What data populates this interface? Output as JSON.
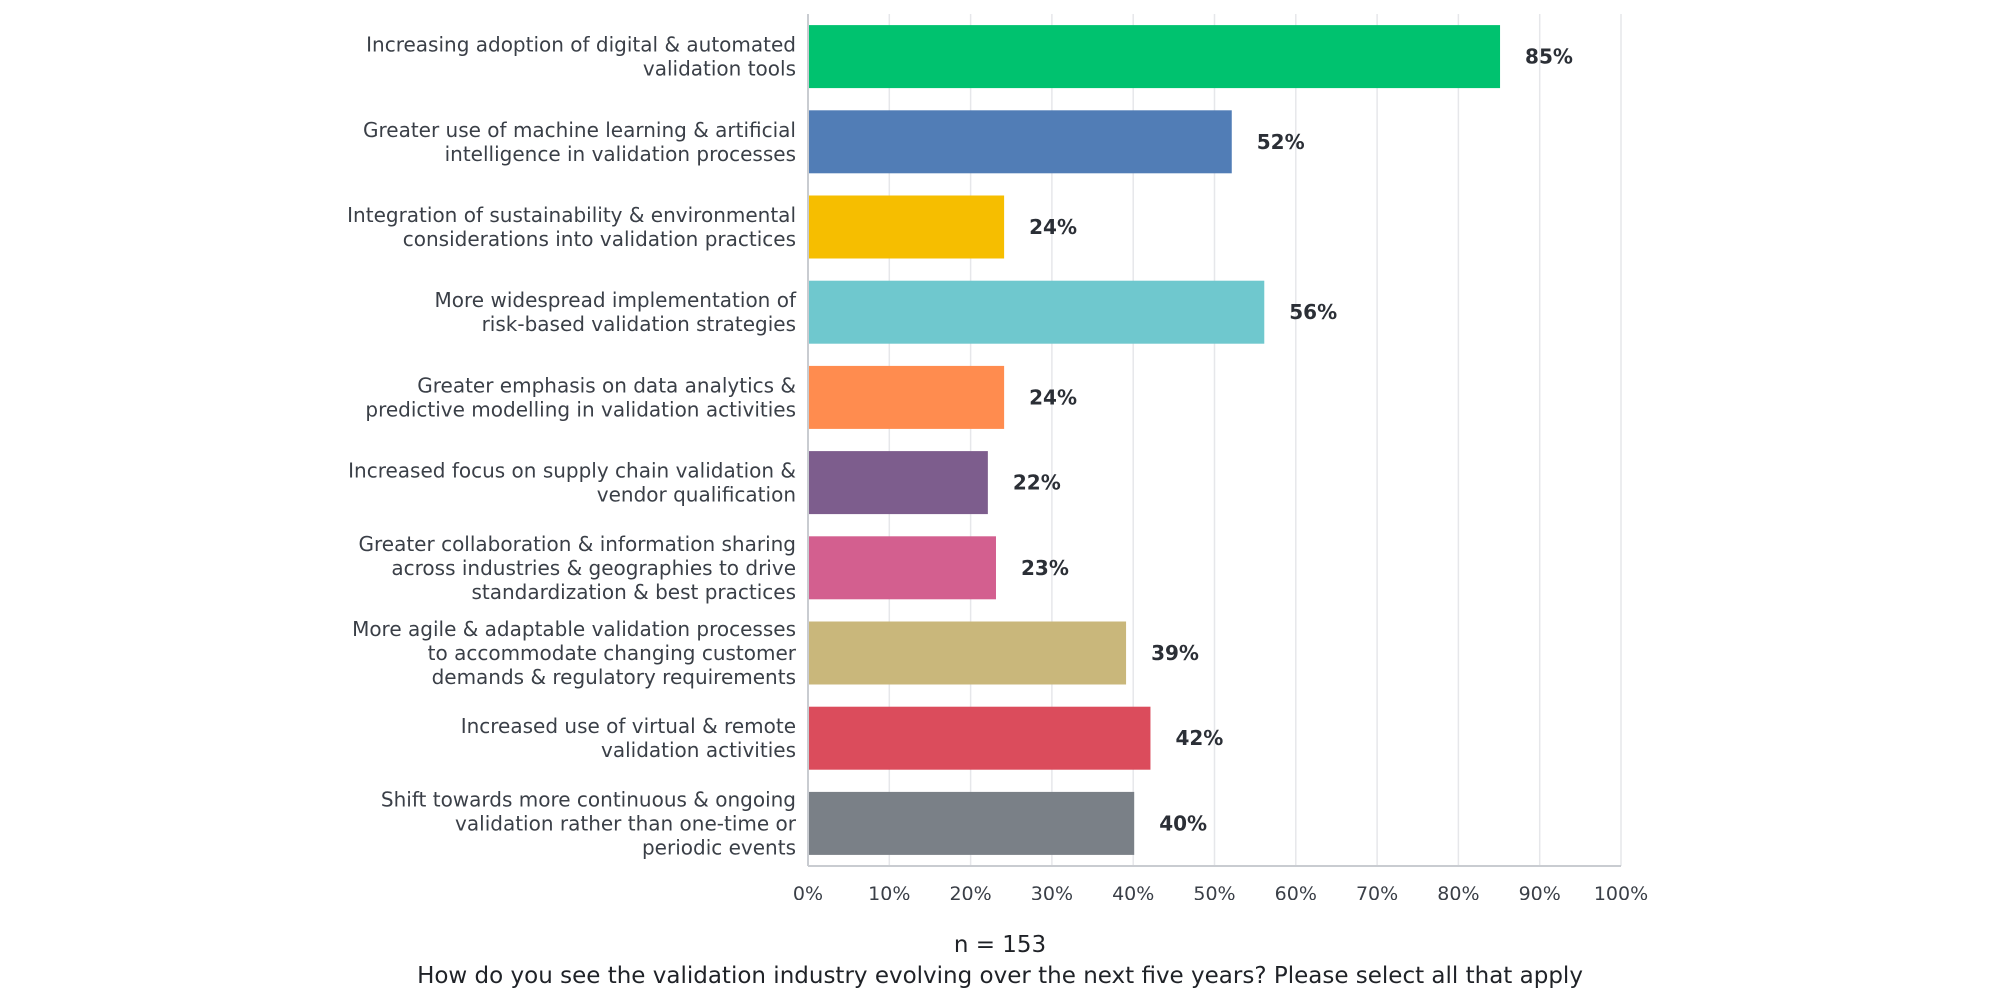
{
  "footer": {
    "n_label": "n = 153",
    "question": "How do you see the validation industry evolving over the next five years? Please select all that apply"
  },
  "chart_data": {
    "type": "bar",
    "orientation": "horizontal",
    "grid": true,
    "xlim": [
      0,
      100
    ],
    "x_ticks": [
      "0%",
      "10%",
      "20%",
      "30%",
      "40%",
      "50%",
      "60%",
      "70%",
      "80%",
      "90%",
      "100%"
    ],
    "categories": [
      [
        "Increasing adoption of digital & automated",
        "validation tools"
      ],
      [
        "Greater use of machine learning & artificial",
        "intelligence in validation processes"
      ],
      [
        "Integration of sustainability & environmental",
        "considerations into validation practices"
      ],
      [
        "More widespread implementation of",
        "risk-based validation strategies"
      ],
      [
        "Greater emphasis on data analytics &",
        "predictive modelling in validation activities"
      ],
      [
        "Increased focus on supply chain validation &",
        "vendor qualification"
      ],
      [
        "Greater collaboration & information sharing",
        "across industries & geographies to drive",
        "standardization & best practices"
      ],
      [
        "More agile & adaptable validation processes",
        "to accommodate changing customer",
        "demands & regulatory requirements"
      ],
      [
        "Increased use of virtual & remote",
        "validation activities"
      ],
      [
        "Shift towards more continuous & ongoing",
        "validation rather than one-time or",
        "periodic events"
      ]
    ],
    "values": [
      85,
      52,
      24,
      56,
      24,
      22,
      23,
      39,
      42,
      40
    ],
    "data_labels": [
      "85%",
      "52%",
      "24%",
      "56%",
      "24%",
      "22%",
      "23%",
      "39%",
      "42%",
      "40%"
    ],
    "colors": [
      "#00c26f",
      "#517db6",
      "#f6be00",
      "#6fc8ce",
      "#ff8c4f",
      "#7d5d8d",
      "#d35f8f",
      "#c9b77b",
      "#db4c5c",
      "#7a8087"
    ]
  }
}
